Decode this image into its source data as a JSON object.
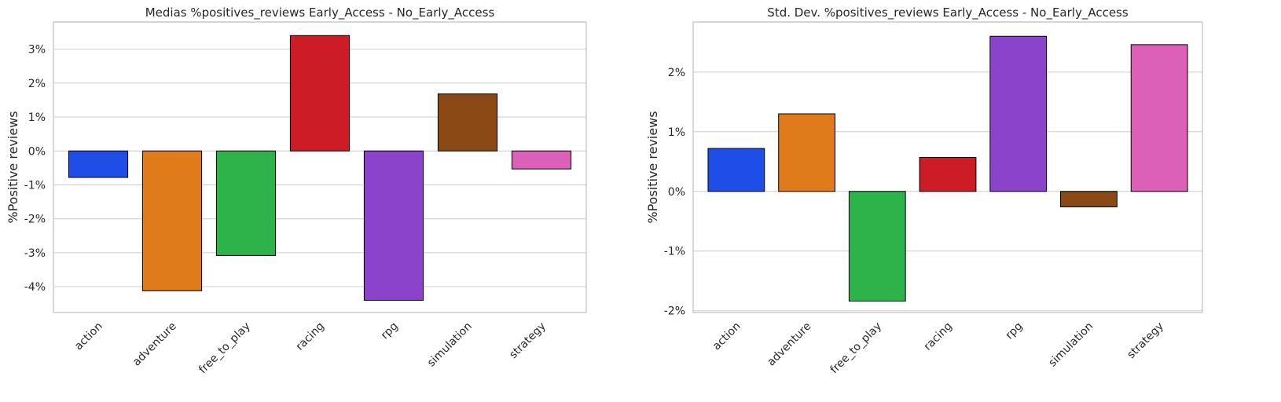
{
  "chart_data": [
    {
      "type": "bar",
      "title": "Medias %positives_reviews Early_Access - No_Early_Access",
      "xlabel": "",
      "ylabel": "%Positive reviews",
      "categories": [
        "action",
        "adventure",
        "free_to_play",
        "racing",
        "rpg",
        "simulation",
        "strategy"
      ],
      "values": [
        -0.78,
        -4.12,
        -3.08,
        3.4,
        -4.4,
        1.68,
        -0.53
      ],
      "colors": [
        "#1f4de8",
        "#e07b1b",
        "#2db34a",
        "#cc1c25",
        "#8b43cc",
        "#8b4915",
        "#dc5fb8"
      ],
      "ylim": [
        -4.76,
        3.8
      ],
      "yticks": [
        -4,
        -3,
        -2,
        -1,
        0,
        1,
        2,
        3
      ],
      "ytick_labels": [
        "-4%",
        "-3%",
        "-2%",
        "-1%",
        "0%",
        "1%",
        "2%",
        "3%"
      ],
      "grid": true
    },
    {
      "type": "bar",
      "title": "Std. Dev. %positives_reviews Early_Access - No_Early_Access",
      "xlabel": "",
      "ylabel": "%Positive reviews",
      "categories": [
        "action",
        "adventure",
        "free_to_play",
        "racing",
        "rpg",
        "simulation",
        "strategy"
      ],
      "values": [
        0.72,
        1.3,
        -1.84,
        0.57,
        2.6,
        -0.26,
        2.46
      ],
      "colors": [
        "#1f4de8",
        "#e07b1b",
        "#2db34a",
        "#cc1c25",
        "#8b43cc",
        "#8b4915",
        "#dc5fb8"
      ],
      "ylim": [
        -2.03,
        2.84
      ],
      "yticks": [
        -2,
        -1,
        0,
        1,
        2
      ],
      "ytick_labels": [
        "-2%",
        "-1%",
        "0%",
        "1%",
        "2%"
      ],
      "grid": true
    }
  ]
}
